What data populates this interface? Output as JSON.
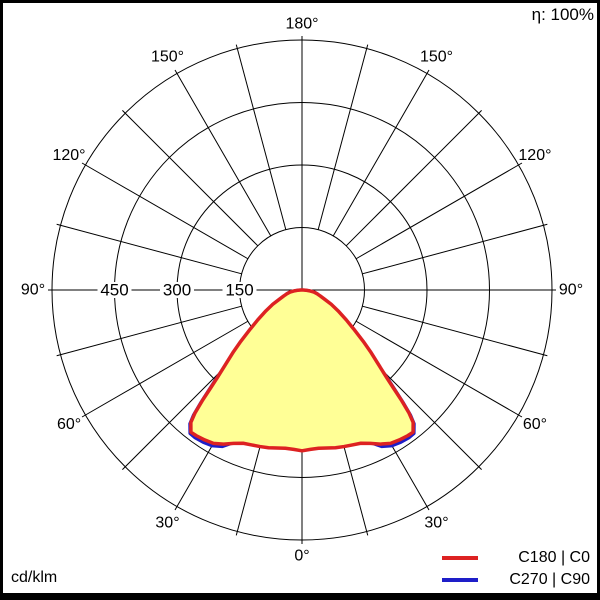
{
  "header": {
    "efficiency": "η: 100%"
  },
  "footer": {
    "unit": "cd/klm"
  },
  "legend": [
    {
      "label": "C180 | C0",
      "color": "#dd2222"
    },
    {
      "label": "C270 | C90",
      "color": "#1e1ec8"
    }
  ],
  "chart_data": {
    "type": "polar-intensity",
    "title": "Luminaire light distribution curve",
    "unit": "cd/klm",
    "fill_color": "#ffff96",
    "grid": {
      "ring_values": [
        150,
        300,
        450,
        600
      ],
      "ring_label_values": [
        450,
        300,
        150
      ],
      "ring_labels": [
        "450",
        "300",
        "150"
      ],
      "angle_step_deg": 15,
      "angle_labels": {
        "0": "0°",
        "30": "30°",
        "60": "60°",
        "90": "90°",
        "120": "120°",
        "150": "150°",
        "180": "180°"
      }
    },
    "series": [
      {
        "name": "C180 | C0",
        "color": "#dd2222",
        "stroke_width": 3.5,
        "gamma_deg": [
          0,
          3,
          6,
          9,
          12,
          15,
          18,
          21,
          24,
          27,
          30,
          33,
          36,
          38,
          40,
          41,
          42,
          43,
          44,
          46,
          48,
          50,
          53,
          56,
          60,
          64,
          68,
          72,
          76,
          80,
          84,
          87,
          90
        ],
        "values": [
          386,
          383,
          382,
          384,
          387,
          389,
          391,
          394,
          403,
          415,
          425,
          429,
          432,
          433,
          415,
          392,
          358,
          322,
          293,
          252,
          221,
          192,
          155,
          128,
          100,
          78,
          58,
          46,
          37,
          29,
          17,
          9,
          3
        ]
      },
      {
        "name": "C270 | C90",
        "color": "#1e1ec8",
        "stroke_width": 3,
        "gamma_deg": [
          0,
          3,
          6,
          9,
          12,
          15,
          18,
          21,
          24,
          27,
          30,
          33,
          36,
          38,
          40,
          41,
          42,
          43,
          44,
          46,
          48,
          50,
          53,
          56,
          60,
          64,
          68,
          72,
          76,
          80,
          84,
          87,
          90
        ],
        "values": [
          384,
          381,
          380,
          382,
          385,
          387,
          389,
          392,
          401,
          422,
          432,
          436,
          438,
          437,
          419,
          397,
          363,
          328,
          299,
          246,
          215,
          186,
          149,
          122,
          94,
          72,
          52,
          40,
          39,
          31,
          19,
          11,
          5
        ]
      }
    ]
  }
}
